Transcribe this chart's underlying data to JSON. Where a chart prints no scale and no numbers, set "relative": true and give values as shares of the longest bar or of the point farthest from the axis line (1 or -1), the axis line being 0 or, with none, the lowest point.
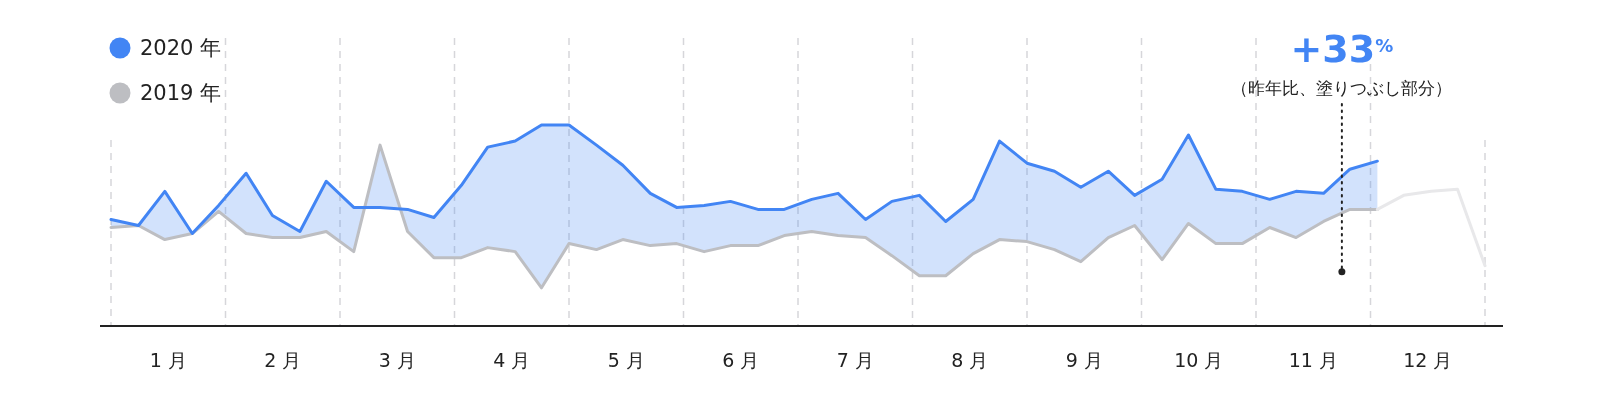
{
  "chart_data": {
    "type": "line",
    "relative": true,
    "x": [
      0,
      0.24,
      0.47,
      0.71,
      0.94,
      1.18,
      1.41,
      1.65,
      1.88,
      2.12,
      2.35,
      2.59,
      2.82,
      3.06,
      3.29,
      3.53,
      3.76,
      4,
      4.24,
      4.47,
      4.71,
      4.94,
      5.18,
      5.41,
      5.65,
      5.88,
      6.12,
      6.35,
      6.59,
      6.82,
      7.06,
      7.29,
      7.53,
      7.76,
      8,
      8.24,
      8.47,
      8.71,
      8.94,
      9.18,
      9.41,
      9.65,
      9.88,
      10.12,
      10.35,
      10.59,
      10.82,
      11.06,
      11.29,
      11.53,
      11.76,
      12
    ],
    "xlim": [
      0,
      12
    ],
    "xticks": [
      {
        "value": 0,
        "label": null
      },
      {
        "value": 0.5,
        "label": "1 月"
      },
      {
        "value": 1,
        "label": null
      },
      {
        "value": 1.5,
        "label": "2 月"
      },
      {
        "value": 2,
        "label": null
      },
      {
        "value": 2.5,
        "label": "3 月"
      },
      {
        "value": 3,
        "label": null
      },
      {
        "value": 3.5,
        "label": "4 月"
      },
      {
        "value": 4,
        "label": null
      },
      {
        "value": 4.5,
        "label": "5 月"
      },
      {
        "value": 5,
        "label": null
      },
      {
        "value": 5.5,
        "label": "6 月"
      },
      {
        "value": 6,
        "label": null
      },
      {
        "value": 6.5,
        "label": "7 月"
      },
      {
        "value": 7,
        "label": null
      },
      {
        "value": 7.5,
        "label": "8 月"
      },
      {
        "value": 8,
        "label": null
      },
      {
        "value": 8.5,
        "label": "9 月"
      },
      {
        "value": 9,
        "label": null
      },
      {
        "value": 9.5,
        "label": "10 月"
      },
      {
        "value": 10,
        "label": null
      },
      {
        "value": 10.5,
        "label": "11 月"
      },
      {
        "value": 11,
        "label": null
      },
      {
        "value": 11.5,
        "label": "12 月"
      },
      {
        "value": 12,
        "label": null
      }
    ],
    "grid": "x",
    "legend": "top left",
    "marker": "none",
    "line_style": "solid",
    "series": [
      {
        "name": "2019 年",
        "color": "#bdbec2",
        "values": [
          0.49,
          0.5,
          0.43,
          0.46,
          0.57,
          0.46,
          0.44,
          0.44,
          0.47,
          0.37,
          0.9,
          0.47,
          0.34,
          0.34,
          0.39,
          0.37,
          0.19,
          0.41,
          0.38,
          0.43,
          0.4,
          0.41,
          0.37,
          0.4,
          0.4,
          0.45,
          0.47,
          0.45,
          0.44,
          0.35,
          0.25,
          0.25,
          0.36,
          0.43,
          0.42,
          0.38,
          0.32,
          0.44,
          0.5,
          0.33,
          0.51,
          0.41,
          0.41,
          0.49,
          0.44,
          0.52,
          0.58,
          0.58,
          null,
          null,
          null,
          null
        ]
      },
      {
        "color": "#e8e8ea",
        "values": [
          null,
          null,
          null,
          null,
          null,
          null,
          null,
          null,
          null,
          null,
          null,
          null,
          null,
          null,
          null,
          null,
          null,
          null,
          null,
          null,
          null,
          null,
          null,
          null,
          null,
          null,
          null,
          null,
          null,
          null,
          null,
          null,
          null,
          null,
          null,
          null,
          null,
          null,
          null,
          null,
          null,
          null,
          null,
          null,
          null,
          null,
          null,
          0.58,
          0.65,
          0.67,
          0.68,
          0.3
        ]
      },
      {
        "name": "2020 年",
        "color": "#4285f4",
        "values": [
          0.53,
          0.5,
          0.67,
          0.46,
          0.6,
          0.76,
          0.55,
          0.47,
          0.72,
          0.59,
          0.59,
          0.58,
          0.54,
          0.7,
          0.89,
          0.92,
          1,
          1,
          0.9,
          0.8,
          0.66,
          0.59,
          0.6,
          0.62,
          0.58,
          0.58,
          0.63,
          0.66,
          0.53,
          0.62,
          0.65,
          0.52,
          0.63,
          0.92,
          0.81,
          0.77,
          0.69,
          0.77,
          0.65,
          0.73,
          0.95,
          0.68,
          0.67,
          0.63,
          0.67,
          0.66,
          0.78,
          0.82,
          null,
          null,
          null,
          null
        ],
        "lower": [
          0.49,
          0.5,
          0.43,
          0.46,
          0.57,
          0.46,
          0.44,
          0.44,
          0.47,
          0.37,
          0.9,
          0.47,
          0.34,
          0.34,
          0.39,
          0.37,
          0.19,
          0.41,
          0.38,
          0.43,
          0.4,
          0.41,
          0.37,
          0.4,
          0.4,
          0.45,
          0.47,
          0.45,
          0.44,
          0.35,
          0.25,
          0.25,
          0.36,
          0.43,
          0.42,
          0.38,
          0.32,
          0.44,
          0.5,
          0.33,
          0.51,
          0.41,
          0.41,
          0.49,
          0.44,
          0.52,
          0.58,
          0.58,
          null,
          null,
          null,
          null
        ],
        "upper": [
          0.53,
          0.5,
          0.67,
          0.46,
          0.6,
          0.76,
          0.55,
          0.47,
          0.72,
          0.59,
          0.59,
          0.58,
          0.54,
          0.7,
          0.89,
          0.92,
          1,
          1,
          0.9,
          0.8,
          0.66,
          0.59,
          0.6,
          0.62,
          0.58,
          0.58,
          0.63,
          0.66,
          0.53,
          0.62,
          0.65,
          0.52,
          0.63,
          0.92,
          0.81,
          0.77,
          0.69,
          0.77,
          0.65,
          0.73,
          0.95,
          0.68,
          0.67,
          0.63,
          0.67,
          0.66,
          0.78,
          0.82,
          null,
          null,
          null,
          null
        ]
      }
    ],
    "annotations": [
      {
        "text": "+33$^{%}$",
        "x": 10.75,
        "y": 0.27
      },
      "（昨年比、塗りつぶし部分）"
    ]
  }
}
